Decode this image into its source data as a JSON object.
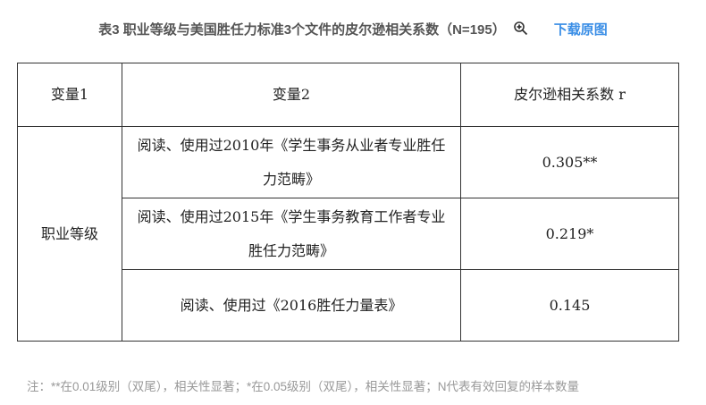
{
  "header": {
    "title": "表3 职业等级与美国胜任力标准3个文件的皮尔逊相关系数（N=195）",
    "zoom_icon": "magnifier-plus-icon",
    "download_label": "下载原图",
    "link_color": "#3a8ee6"
  },
  "table": {
    "columns": [
      "变量1",
      "变量2",
      "皮尔逊相关系数 r"
    ],
    "group_label": "职业等级",
    "rows": [
      {
        "var2": "阅读、使用过2010年《学生事务从业者专业胜任力范畴》",
        "r": "0.305**"
      },
      {
        "var2": "阅读、使用过2015年《学生事务教育工作者专业胜任力范畴》",
        "r": "0.219*"
      },
      {
        "var2": "阅读、使用过《2016胜任力量表》",
        "r": "0.145"
      }
    ]
  },
  "note": "注：**在0.01级别（双尾），相关性显著；*在0.05级别（双尾），相关性显著；N代表有效回复的样本数量"
}
